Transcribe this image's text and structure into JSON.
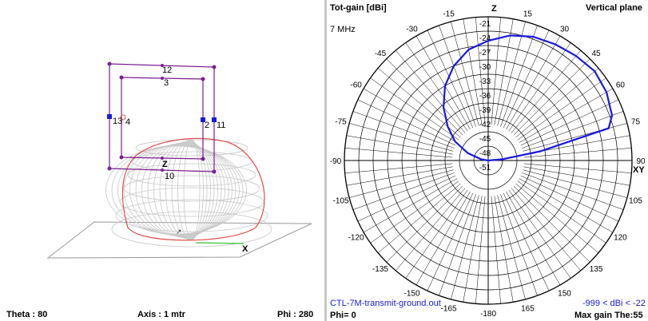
{
  "geometry_view": {
    "theta": "Theta : 80",
    "axis": "Axis : 1 mtr",
    "phi": "Phi : 280",
    "axis_labels": {
      "z": "Z",
      "x": "X"
    },
    "wire_labels": [
      "12",
      "3",
      "13",
      "4",
      "2",
      "11",
      "10"
    ]
  },
  "polar_plot": {
    "title": "Tot-gain [dBi]",
    "frequency": "7 MHz",
    "plane": "Vertical plane",
    "axis_z": "Z",
    "axis_xy": "XY",
    "ring_labels": [
      "-21",
      "-24",
      "-27",
      "-30",
      "-33",
      "-36",
      "-39",
      "-42",
      "-45",
      "-48",
      "-51"
    ],
    "angle_labels": [
      "-15",
      "15",
      "-30",
      "30",
      "-45",
      "45",
      "-60",
      "60",
      "-75",
      "75",
      "-90",
      "90",
      "-105",
      "105",
      "-120",
      "120",
      "-135",
      "135",
      "-150",
      "150",
      "-165",
      "165",
      "-180"
    ],
    "filename": "CTL-7M-transmit-ground.out",
    "phi_readout": "Phi= 0",
    "range_readout": "-999 < dBi < -22",
    "max_gain": "Max gain The:55",
    "colors": {
      "pattern": "#1a1adc",
      "grid": "#000000",
      "accent_text": "#1a1adc"
    }
  },
  "chart_data": {
    "type": "polar",
    "theta_deg": [
      -90,
      -80,
      -70,
      -60,
      -50,
      -40,
      -30,
      -20,
      -10,
      0,
      10,
      20,
      30,
      40,
      50,
      60,
      70,
      75,
      80,
      85,
      90
    ],
    "gain_dbi": [
      -51,
      -49.5,
      -46.5,
      -43,
      -40,
      -36.5,
      -33,
      -30,
      -27.5,
      -26,
      -24.5,
      -23.5,
      -23,
      -22.5,
      -22,
      -22.5,
      -23.5,
      -25,
      -40,
      -48,
      -51
    ],
    "r_range": [
      -51,
      -21
    ],
    "plane": "Vertical plane",
    "max_gain_theta": 55
  }
}
